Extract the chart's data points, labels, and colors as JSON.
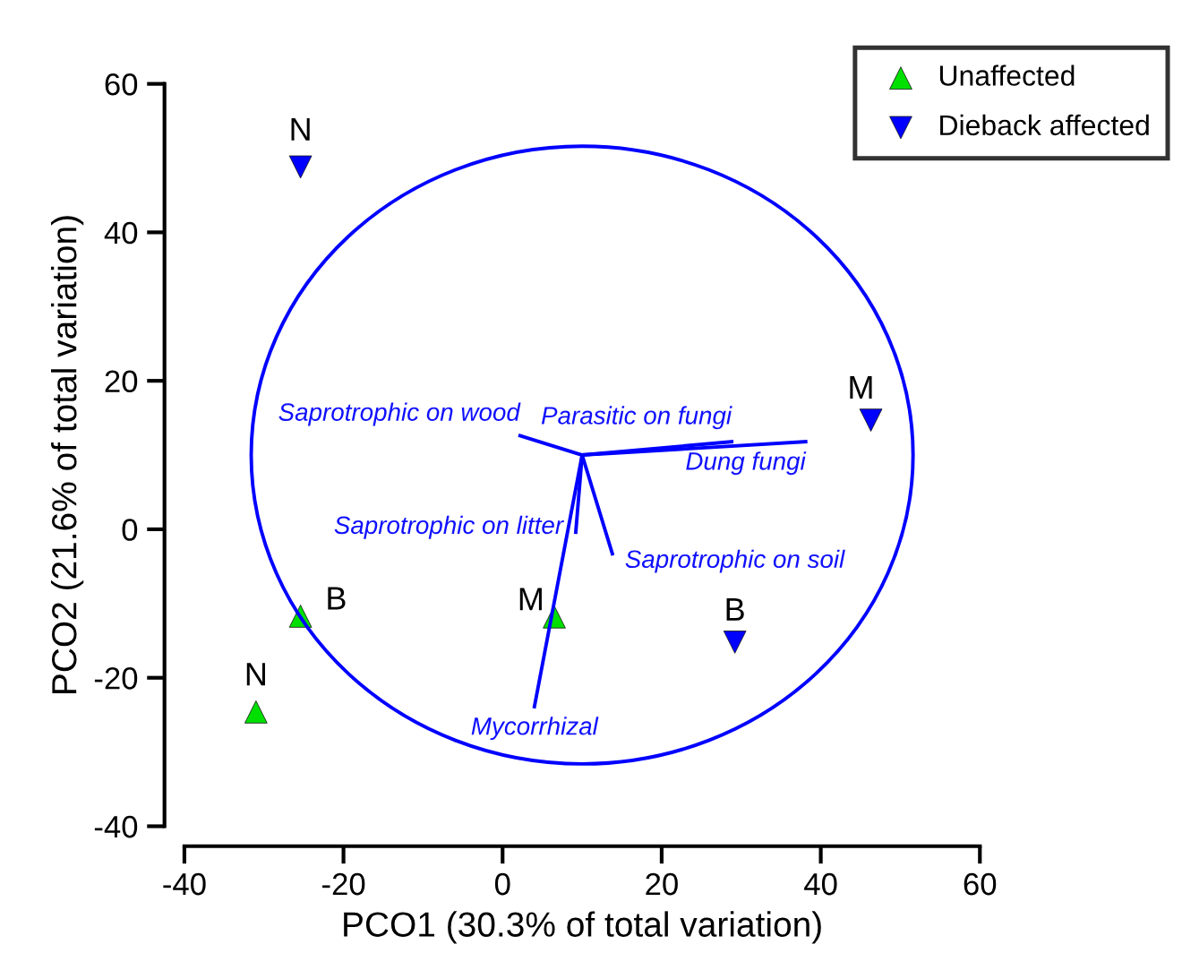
{
  "chart_data": {
    "type": "scatter",
    "xlabel": "PCO1 (30.3% of total variation)",
    "ylabel": "PCO2 (21.6% of total variation)",
    "xlim": [
      -40,
      60
    ],
    "ylim": [
      -40,
      60
    ],
    "xticks": [
      -40,
      -20,
      0,
      20,
      40,
      60
    ],
    "yticks": [
      -40,
      -20,
      0,
      20,
      40,
      60
    ],
    "grid": false,
    "legend": "top right",
    "series": [
      {
        "name": "Unaffected",
        "marker": "triangle",
        "color": "#00e000",
        "x": [
          -25.4,
          6.5,
          -31.0
        ],
        "values": [
          -11.7,
          -11.8,
          -24.6
        ]
      },
      {
        "name": "Dieback affected",
        "marker": "triangle_down",
        "color": "#0000ff",
        "x": [
          -25.4,
          46.3,
          29.2
        ],
        "values": [
          48.8,
          14.7,
          -15.2
        ]
      },
      {
        "type": "line",
        "color": "#0000ff",
        "x": [
          10,
          2.2
        ],
        "values": [
          10,
          12.6
        ]
      },
      {
        "type": "line",
        "color": "#0000ff",
        "x": [
          10,
          28.8
        ],
        "values": [
          10,
          11.8
        ]
      },
      {
        "type": "line",
        "color": "#0000ff",
        "x": [
          10,
          38.1
        ],
        "values": [
          10,
          11.8
        ]
      },
      {
        "type": "line",
        "color": "#0000ff",
        "x": [
          10,
          9.2
        ],
        "values": [
          10,
          -0.4
        ]
      },
      {
        "type": "line",
        "color": "#0000ff",
        "x": [
          10,
          13.8
        ],
        "values": [
          10,
          -3.3
        ]
      },
      {
        "type": "line",
        "color": "#0000ff",
        "x": [
          10,
          4.0
        ],
        "values": [
          10,
          -23.9
        ]
      }
    ],
    "annotations": [
      {
        "text": "N",
        "x": -31.0,
        "y": -24.6
      },
      {
        "text": "B",
        "x": -25.4,
        "y": -11.7
      },
      {
        "text": "M",
        "x": 6.5,
        "y": -11.8
      },
      {
        "text": "N",
        "x": -25.4,
        "y": 48.8
      },
      {
        "text": "M",
        "x": 46.3,
        "y": 14.7
      },
      {
        "text": "B",
        "x": 29.2,
        "y": -15.2
      },
      {
        "text": "Saprotrophic on wood",
        "x": 2.2,
        "y": 12.6
      },
      {
        "text": "Parasitic on fungi",
        "x": 28.8,
        "y": 11.8
      },
      {
        "text": "Dung fungi",
        "x": 38.1,
        "y": 11.8
      },
      {
        "text": "Saprotrophic on litter",
        "x": 9.2,
        "y": -0.4
      },
      {
        "text": "Saprotrophic on soil",
        "x": 13.8,
        "y": -3.3
      },
      {
        "text": "Mycorrhizal",
        "x": 4.0,
        "y": -23.9
      }
    ]
  }
}
